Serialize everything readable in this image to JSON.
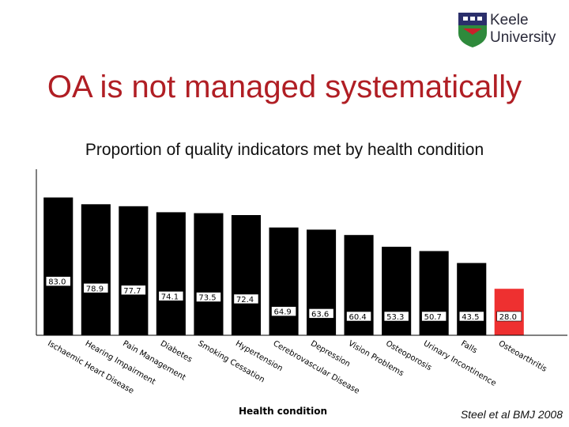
{
  "slide": {
    "title": "OA is not managed systematically",
    "citation": "Steel et al BMJ 2008"
  },
  "logo": {
    "line1": "Keele",
    "line2": "University",
    "shield_colors": {
      "top": "#2b2f6b",
      "bottom": "#2f8a3c",
      "accent": "#c8202a"
    }
  },
  "colors": {
    "bar": "#000000",
    "highlight": "#ee3030"
  },
  "chart_data": {
    "type": "bar",
    "title": "Proportion of quality indicators met by health condition",
    "xlabel": "Health condition",
    "ylabel": "",
    "ylim": [
      0,
      100
    ],
    "categories": [
      "Ischaemic Heart Disease",
      "Hearing Impairment",
      "Pain Management",
      "Diabetes",
      "Smoking Cessation",
      "Hypertension",
      "Cerebrovascular Disease",
      "Depression",
      "Vision Problems",
      "Osteoporosis",
      "Urinary Incontinence",
      "Falls",
      "Osteoarthritis"
    ],
    "values": [
      83.0,
      78.9,
      77.7,
      74.1,
      73.5,
      72.4,
      64.9,
      63.6,
      60.4,
      53.3,
      50.7,
      43.5,
      28.0
    ],
    "data_labels": [
      "83.0",
      "78.9",
      "77.7",
      "74.1",
      "73.5",
      "72.4",
      "64.9",
      "63.6",
      "60.4",
      "53.3",
      "50.7",
      "43.5",
      "28.0"
    ],
    "highlight_index": 12,
    "grid": false,
    "legend": "none"
  }
}
